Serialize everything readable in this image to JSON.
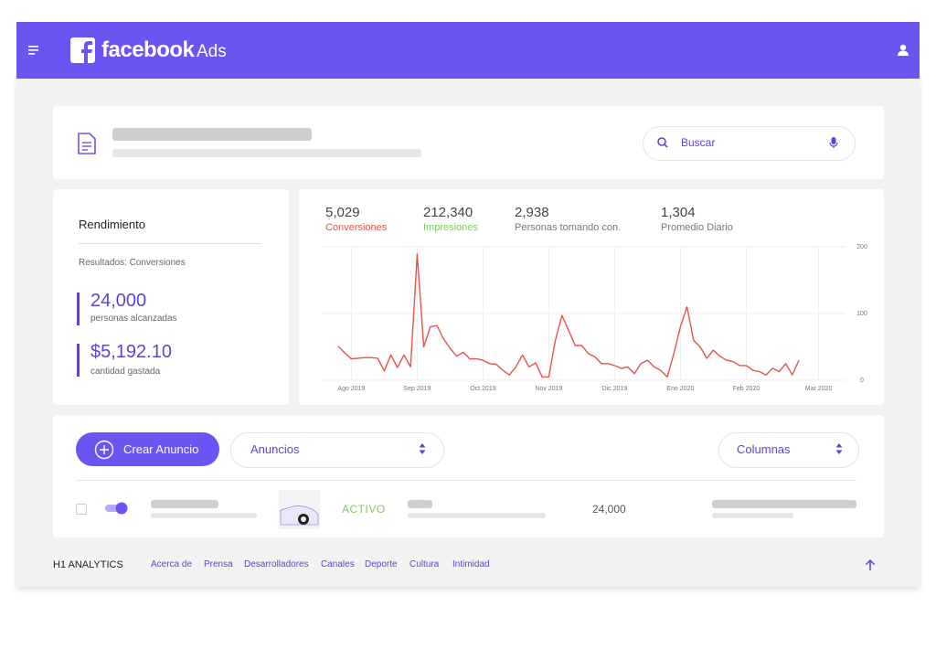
{
  "header": {
    "brand": "facebook",
    "product": "Ads"
  },
  "search": {
    "placeholder": "Buscar"
  },
  "performance": {
    "title": "Rendimiento",
    "results": "Resultados: Conversiones",
    "metrics": [
      {
        "value": "24,000",
        "label": "personas alcanzadas"
      },
      {
        "value": "$5,192.10",
        "label": "cantidad gastada"
      }
    ]
  },
  "stats": [
    {
      "value": "5,029",
      "label": "Conversiones",
      "color": "#e5534b"
    },
    {
      "value": "212,340",
      "label": "Impresiones",
      "color": "#7ccd5c"
    },
    {
      "value": "2,938",
      "label": "Personas tomando con.",
      "color": "#777777"
    },
    {
      "value": "1,304",
      "label": "Promedio Diario",
      "color": "#777777"
    }
  ],
  "chart_data": {
    "type": "line",
    "color": "#e5534b",
    "categories": [
      null,
      null,
      "Ago 2019",
      null,
      null,
      null,
      null,
      null,
      null,
      null,
      null,
      null,
      "Sep 2019",
      null,
      null,
      null,
      null,
      null,
      null,
      null,
      null,
      null,
      "Oct 2019",
      null,
      null,
      null,
      null,
      null,
      null,
      null,
      null,
      null,
      "Nov 2019",
      null,
      null,
      null,
      null,
      null,
      null,
      null,
      null,
      null,
      "Dic 2019",
      null,
      null,
      null,
      null,
      null,
      null,
      null,
      null,
      null,
      "Ene 2020",
      null,
      null,
      null,
      null,
      null,
      null,
      null,
      null,
      null,
      "Feb 2020",
      null,
      null,
      null,
      null,
      null,
      null,
      null,
      null,
      null,
      null,
      "Mar 2020"
    ],
    "values": [
      51,
      41,
      32,
      33,
      34,
      34,
      33,
      14,
      38,
      19,
      38,
      20,
      189,
      50,
      80,
      82,
      62,
      48,
      36,
      42,
      32,
      32,
      30,
      25,
      24,
      15,
      8,
      20,
      38,
      20,
      26,
      5,
      5,
      60,
      97,
      75,
      52,
      52,
      40,
      35,
      25,
      25,
      22,
      18,
      20,
      10,
      25,
      30,
      20,
      15,
      5,
      40,
      80,
      110,
      60,
      50,
      33,
      45,
      36,
      30,
      28,
      22,
      22,
      15,
      13,
      8,
      18,
      13,
      25,
      8,
      30,
      null,
      null,
      null
    ],
    "ylim": [
      0,
      200
    ],
    "yticks": [
      0,
      100,
      200
    ],
    "grid": true
  },
  "table": {
    "create": "Crear Anuncio",
    "filter": "Anuncios",
    "columns": "Columnas",
    "rows": [
      {
        "status": "ACTIVO",
        "reach": "24,000"
      }
    ]
  },
  "footer": {
    "brand": "H1 ANALYTICS",
    "links": [
      "Acerca de",
      "Prensa",
      "Desarrolladores",
      "Canales",
      "Deporte",
      "Cultura",
      "Intimidad"
    ]
  }
}
